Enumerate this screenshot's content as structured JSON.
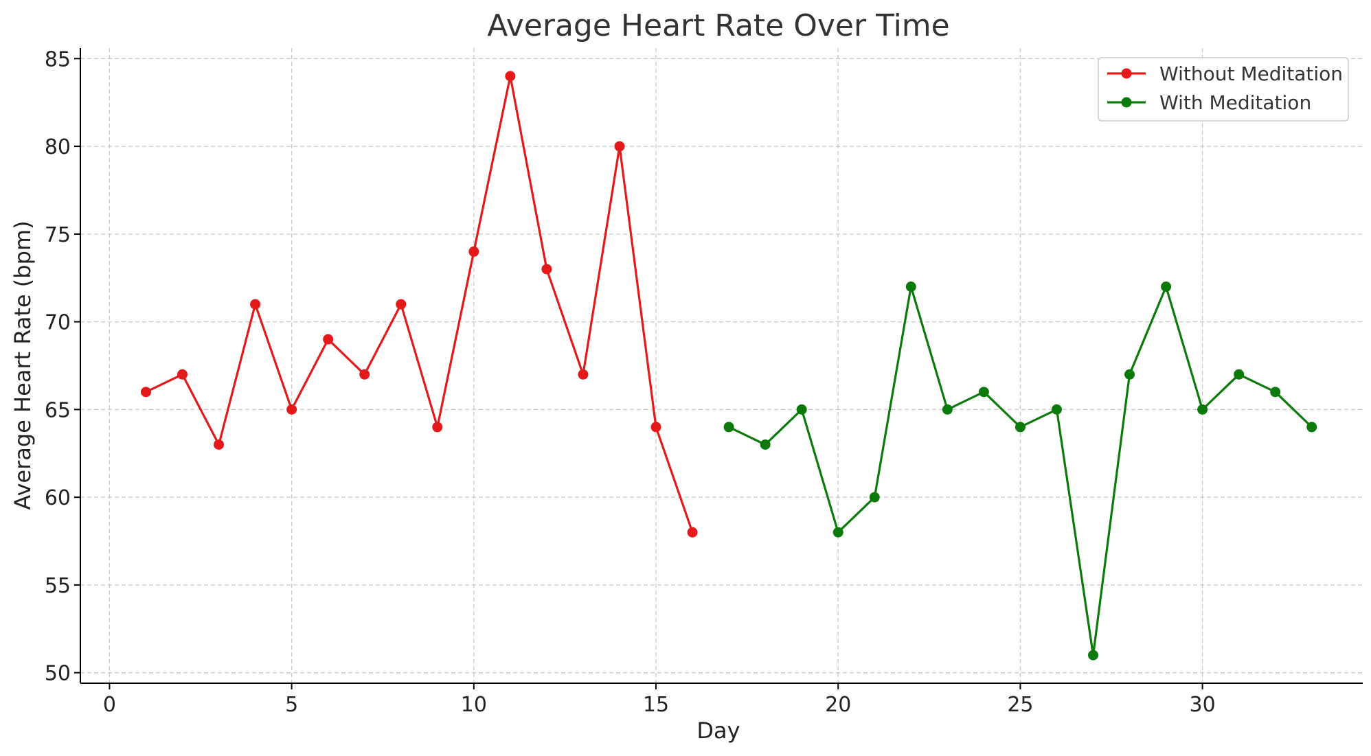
{
  "chart_data": {
    "type": "line",
    "title": "Average Heart Rate Over Time",
    "xlabel": "Day",
    "ylabel": "Average Heart Rate (bpm)",
    "xlim": [
      -0.8,
      34.4
    ],
    "ylim": [
      49.4,
      85.6
    ],
    "xticks": [
      0,
      5,
      10,
      15,
      20,
      25,
      30
    ],
    "yticks": [
      50,
      55,
      60,
      65,
      70,
      75,
      80,
      85
    ],
    "grid": true,
    "legend_position": "top-right",
    "series": [
      {
        "name": "Without Meditation",
        "color": "#e41a1a",
        "x": [
          1,
          2,
          3,
          4,
          5,
          6,
          7,
          8,
          9,
          10,
          11,
          12,
          13,
          14,
          15,
          16
        ],
        "y": [
          66,
          67,
          63,
          71,
          65,
          69,
          67,
          71,
          64,
          74,
          84,
          73,
          67,
          80,
          64,
          58
        ]
      },
      {
        "name": "With Meditation",
        "color": "#0b7a0b",
        "x": [
          17,
          18,
          19,
          20,
          21,
          22,
          23,
          24,
          25,
          26,
          27,
          28,
          29,
          30,
          31,
          32,
          33
        ],
        "y": [
          64,
          63,
          65,
          58,
          60,
          72,
          65,
          66,
          64,
          65,
          51,
          67,
          72,
          65,
          67,
          66,
          64
        ]
      }
    ]
  }
}
